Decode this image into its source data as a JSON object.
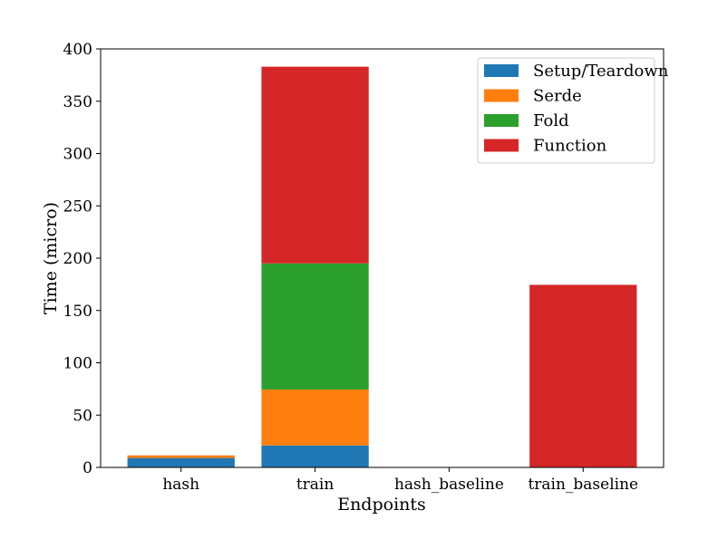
{
  "chart_data": {
    "type": "bar",
    "stacked": true,
    "title": "",
    "xlabel": "Endpoints",
    "ylabel": "Time (micro)",
    "ylim": [
      0,
      400
    ],
    "yticks": [
      0,
      50,
      100,
      150,
      200,
      250,
      300,
      350,
      400
    ],
    "categories": [
      "hash",
      "train",
      "hash_baseline",
      "train_baseline"
    ],
    "grid": false,
    "legend_position": "top-right",
    "series": [
      {
        "name": "Setup/Teardown",
        "color": "#1f77b4",
        "values": [
          9,
          21,
          0,
          0
        ]
      },
      {
        "name": "Serde",
        "color": "#ff7f0e",
        "values": [
          2.5,
          53.5,
          0,
          0
        ]
      },
      {
        "name": "Fold",
        "color": "#2ca02c",
        "values": [
          0,
          120.5,
          0,
          0
        ]
      },
      {
        "name": "Function",
        "color": "#d62728",
        "values": [
          0,
          188,
          0,
          174.5
        ]
      }
    ]
  }
}
